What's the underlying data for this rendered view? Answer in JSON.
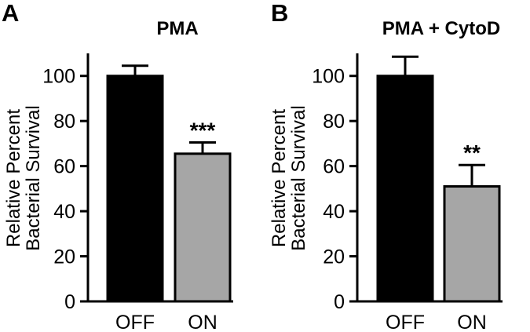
{
  "chart_data": [
    {
      "panel_label": "A",
      "type": "bar",
      "title": "PMA",
      "ylabel_lines": [
        "Relative Percent",
        "Bacterial Survival"
      ],
      "categories": [
        "OFF",
        "ON"
      ],
      "values": [
        100,
        65.5
      ],
      "errors": [
        4.5,
        5
      ],
      "significance": [
        "",
        "***"
      ],
      "bar_colors": [
        "#000000",
        "#a6a6a6"
      ],
      "ylim": [
        0,
        110
      ],
      "yticks": [
        0,
        20,
        40,
        60,
        80,
        100
      ],
      "grid": false,
      "legend": "none"
    },
    {
      "panel_label": "B",
      "type": "bar",
      "title": "PMA + CytoD",
      "ylabel_lines": [
        "Relative Percent",
        "Bacterial Survival"
      ],
      "categories": [
        "OFF",
        "ON"
      ],
      "values": [
        100,
        51
      ],
      "errors": [
        8.5,
        9.5
      ],
      "significance": [
        "",
        "**"
      ],
      "bar_colors": [
        "#000000",
        "#a6a6a6"
      ],
      "ylim": [
        0,
        110
      ],
      "yticks": [
        0,
        20,
        40,
        60,
        80,
        100
      ],
      "grid": false,
      "legend": "none"
    }
  ]
}
